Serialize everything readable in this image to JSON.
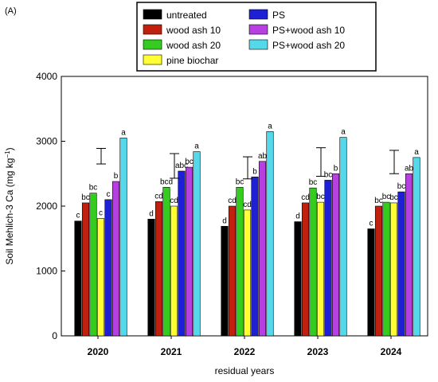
{
  "panel_label": "(A)",
  "colors": {
    "untreated": "#000000",
    "wood ash 10": "#c0210e",
    "wood ash 20": "#33cc1f",
    "pine biochar": "#ffff33",
    "PS": "#1f1fd6",
    "PS+wood ash 10": "#b640e0",
    "PS+wood ash 20": "#55d8ea"
  },
  "legend_columns": [
    [
      "untreated",
      "wood ash 10",
      "wood ash 20",
      "pine biochar"
    ],
    [
      "PS",
      "PS+wood ash 10",
      "PS+wood ash 20"
    ]
  ],
  "chart_data": {
    "type": "bar",
    "title": "",
    "xlabel": "residual years",
    "ylabel": "Soil Mehlich-3 Ca (mg kg",
    "ylabel_superscript": "−1",
    "ylabel_close": ")",
    "ylim": [
      0,
      4000
    ],
    "yticks": [
      "0",
      "1000",
      "2000",
      "3000",
      "4000"
    ],
    "categories": [
      "2020",
      "2021",
      "2022",
      "2023",
      "2024"
    ],
    "grid": false,
    "legend_position": "top",
    "series": [
      {
        "name": "untreated",
        "values": [
          1770,
          1800,
          1690,
          1760,
          1650
        ],
        "letters": [
          "c",
          "d",
          "d",
          "d",
          "c"
        ]
      },
      {
        "name": "wood ash 10",
        "values": [
          2050,
          2070,
          2000,
          2050,
          2000
        ],
        "letters": [
          "bc",
          "cd",
          "cd",
          "cd",
          "bc"
        ]
      },
      {
        "name": "wood ash 20",
        "values": [
          2200,
          2290,
          2290,
          2280,
          2060
        ],
        "letters": [
          "bc",
          "bcd",
          "bc",
          "bc",
          "bc"
        ]
      },
      {
        "name": "pine biochar",
        "values": [
          1810,
          2000,
          1940,
          2060,
          2050
        ],
        "letters": [
          "c",
          "cd",
          "cd",
          "bc",
          "bc"
        ]
      },
      {
        "name": "PS",
        "values": [
          2100,
          2540,
          2450,
          2400,
          2220
        ],
        "letters": [
          "c",
          "abc",
          "b",
          "bc",
          "bc"
        ]
      },
      {
        "name": "PS+wood ash 10",
        "values": [
          2380,
          2600,
          2690,
          2500,
          2500
        ],
        "letters": [
          "b",
          "bc",
          "ab",
          "b",
          "ab"
        ]
      },
      {
        "name": "PS+wood ash 20",
        "values": [
          3050,
          2840,
          3150,
          3060,
          2750
        ],
        "letters": [
          "a",
          "a",
          "a",
          "a",
          "a"
        ]
      }
    ],
    "error_bars": {
      "values": [
        2650,
        2430,
        2420,
        2460,
        2500
      ],
      "plus": [
        240,
        380,
        340,
        440,
        360
      ]
    }
  }
}
